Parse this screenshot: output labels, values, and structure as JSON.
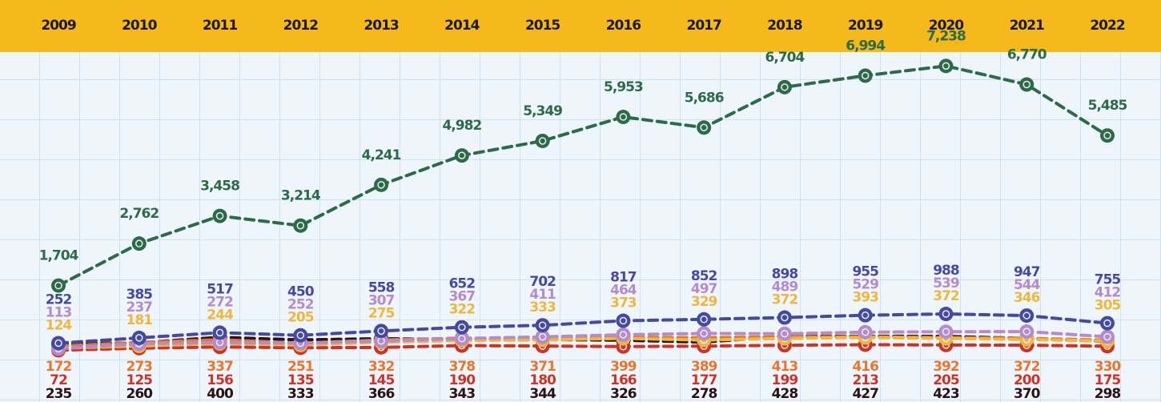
{
  "chart_data": {
    "type": "line",
    "categories": [
      "2009",
      "2010",
      "2011",
      "2012",
      "2013",
      "2014",
      "2015",
      "2016",
      "2017",
      "2018",
      "2019",
      "2020",
      "2021",
      "2022"
    ],
    "ylim": [
      0,
      8900
    ],
    "series": [
      {
        "color": "#2d6b48",
        "values": [
          1704,
          2762,
          3458,
          3214,
          4241,
          4982,
          5349,
          5953,
          5686,
          6704,
          6994,
          7238,
          6770,
          5485
        ],
        "value_labels": [
          "1,704",
          "2,762",
          "3,458",
          "3,214",
          "4,241",
          "4,982",
          "5,349",
          "5,953",
          "5,686",
          "6,704",
          "6,994",
          "7,238",
          "6,770",
          "5,485"
        ]
      },
      {
        "color": "#45499f",
        "values": [
          252,
          385,
          517,
          450,
          558,
          652,
          702,
          817,
          852,
          898,
          955,
          988,
          947,
          755
        ]
      },
      {
        "color": "#b58bc9",
        "values": [
          113,
          237,
          272,
          252,
          307,
          367,
          411,
          464,
          497,
          489,
          529,
          539,
          544,
          412
        ]
      },
      {
        "color": "#efb73b",
        "values": [
          124,
          181,
          244,
          205,
          275,
          322,
          333,
          373,
          329,
          372,
          393,
          372,
          346,
          305
        ]
      },
      {
        "color": "#e8762f",
        "values": [
          172,
          273,
          337,
          251,
          332,
          378,
          371,
          399,
          389,
          413,
          416,
          392,
          372,
          330
        ]
      },
      {
        "color": "#cc3427",
        "values": [
          72,
          125,
          156,
          135,
          145,
          190,
          180,
          166,
          177,
          199,
          213,
          205,
          200,
          175
        ]
      },
      {
        "color": "#2b1216",
        "values": [
          235,
          260,
          400,
          333,
          366,
          343,
          344,
          326,
          278,
          428,
          427,
          423,
          370,
          298
        ]
      }
    ]
  }
}
